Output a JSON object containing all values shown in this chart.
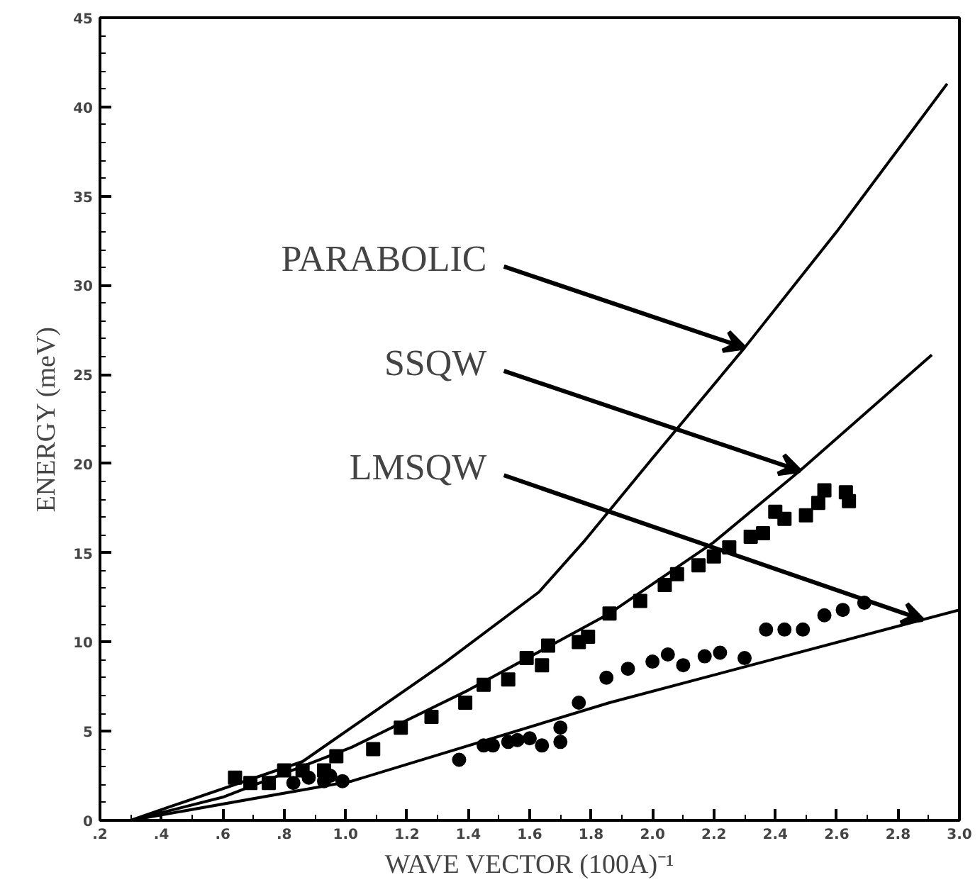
{
  "chart_data": {
    "type": "line",
    "xlabel": "WAVE VECTOR (100A)⁻¹",
    "ylabel": "ENERGY (meV)",
    "xlim": [
      0.2,
      3.0
    ],
    "ylim": [
      0,
      45
    ],
    "xticks": [
      {
        "value": 0.2,
        "label": ".2"
      },
      {
        "value": 0.4,
        "label": ".4"
      },
      {
        "value": 0.6,
        "label": ".6"
      },
      {
        "value": 0.8,
        "label": ".8"
      },
      {
        "value": 1.0,
        "label": "1.0"
      },
      {
        "value": 1.2,
        "label": "1.2"
      },
      {
        "value": 1.4,
        "label": "1.4"
      },
      {
        "value": 1.6,
        "label": "1.6"
      },
      {
        "value": 1.8,
        "label": "1.8"
      },
      {
        "value": 2.0,
        "label": "2.0"
      },
      {
        "value": 2.2,
        "label": "2.2"
      },
      {
        "value": 2.4,
        "label": "2.4"
      },
      {
        "value": 2.6,
        "label": "2.6"
      },
      {
        "value": 2.8,
        "label": "2.8"
      },
      {
        "value": 3.0,
        "label": "3.0"
      }
    ],
    "yticks": [
      0,
      5,
      10,
      15,
      20,
      25,
      30,
      35,
      40,
      45
    ],
    "grid": false,
    "line_style": "solid",
    "series": [
      {
        "color": "#000000",
        "x": [
          0.3,
          0.4,
          0.86,
          1.32,
          1.63,
          1.78,
          2.0,
          2.3,
          2.6,
          2.96
        ],
        "values": [
          0,
          0.6,
          3.3,
          8.8,
          12.8,
          15.7,
          20.3,
          26.5,
          33.0,
          41.3
        ]
      },
      {
        "color": "#000000",
        "x": [
          0.3,
          0.6,
          1.02,
          1.4,
          1.86,
          2.2,
          2.48,
          2.91
        ],
        "values": [
          0,
          1.3,
          4.1,
          7.3,
          11.6,
          15.6,
          19.6,
          26.1
        ]
      },
      {
        "color": "#000000",
        "x": [
          0.3,
          1.02,
          1.86,
          3.0
        ],
        "values": [
          0,
          2.2,
          6.6,
          11.8
        ]
      },
      {
        "type": "scatter",
        "marker": "square",
        "color": "#000000",
        "x": [
          0.64,
          0.69,
          0.75,
          0.8,
          0.86,
          0.93,
          0.97,
          1.09,
          1.18,
          1.28,
          1.39,
          1.45,
          1.53,
          1.59,
          1.64,
          1.66,
          1.76,
          1.79,
          1.86,
          1.96,
          2.04,
          2.08,
          2.15,
          2.2,
          2.25,
          2.32,
          2.36,
          2.4,
          2.43,
          2.5,
          2.54,
          2.56,
          2.63,
          2.64
        ],
        "values": [
          2.4,
          2.1,
          2.1,
          2.8,
          2.8,
          2.8,
          3.6,
          4.0,
          5.2,
          5.8,
          6.6,
          7.6,
          7.9,
          9.1,
          8.7,
          9.8,
          10.0,
          10.3,
          11.6,
          12.3,
          13.2,
          13.8,
          14.3,
          14.8,
          15.3,
          15.9,
          16.1,
          17.3,
          16.9,
          17.1,
          17.8,
          18.5,
          18.4,
          17.9
        ]
      },
      {
        "type": "scatter",
        "marker": "circle",
        "color": "#000000",
        "x": [
          0.83,
          0.88,
          0.93,
          0.95,
          0.99,
          1.37,
          1.45,
          1.48,
          1.53,
          1.56,
          1.6,
          1.64,
          1.7,
          1.7,
          1.76,
          1.85,
          1.92,
          2.0,
          2.05,
          2.1,
          2.17,
          2.22,
          2.3,
          2.37,
          2.43,
          2.49,
          2.56,
          2.62,
          2.69
        ],
        "values": [
          2.1,
          2.4,
          2.2,
          2.5,
          2.2,
          3.4,
          4.2,
          4.2,
          4.4,
          4.5,
          4.6,
          4.2,
          4.4,
          5.2,
          6.6,
          8.0,
          8.5,
          8.9,
          9.3,
          8.7,
          9.2,
          9.4,
          9.1,
          10.7,
          10.7,
          10.7,
          11.5,
          11.8,
          12.2
        ]
      }
    ],
    "annotations": [
      {
        "text": "PARABOLIC",
        "x": 2.3,
        "y": 26.5
      },
      {
        "text": "SSQW",
        "x": 2.48,
        "y": 19.6
      },
      {
        "text": "LMSQW",
        "x": 2.88,
        "y": 11.25
      }
    ]
  }
}
